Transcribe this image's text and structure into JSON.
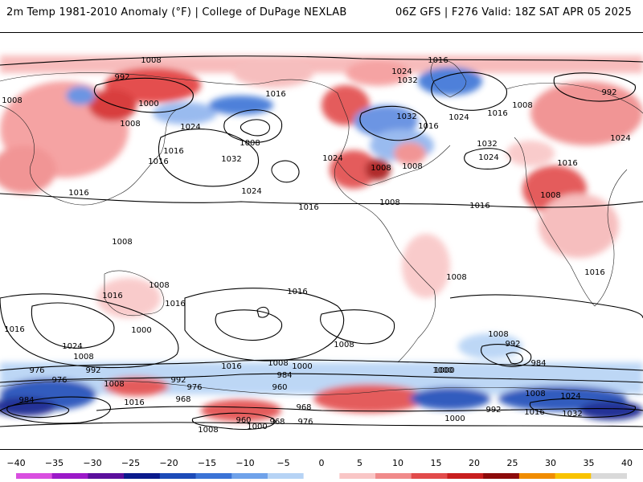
{
  "header": {
    "title_left": "2m Temp 1981-2010 Anomaly (°F) | College of DuPage NEXLAB",
    "title_right": "06Z GFS | F276 Valid: 18Z SAT APR 05 2025"
  },
  "map": {
    "isobar_labels": [
      "1008",
      "1016",
      "992",
      "1024",
      "1032",
      "1008",
      "1000",
      "1008",
      "1016",
      "1016",
      "1016",
      "1024",
      "1032",
      "1016",
      "1024",
      "1032",
      "1024",
      "1008",
      "1008",
      "1016",
      "1016",
      "1024",
      "1008",
      "1032",
      "1024",
      "992",
      "1008",
      "1016",
      "1016",
      "1024",
      "1008",
      "1008",
      "1008",
      "1016",
      "1016",
      "1008",
      "1016",
      "1016",
      "1016",
      "1008",
      "1000",
      "1024",
      "1008",
      "1016",
      "1008",
      "1016",
      "1000",
      "992",
      "984",
      "976",
      "1008",
      "1000",
      "1016",
      "976",
      "992",
      "976",
      "968",
      "1008",
      "984",
      "960",
      "1008",
      "968",
      "992",
      "992",
      "984",
      "1000",
      "1000",
      "1008",
      "1016",
      "1032",
      "960",
      "968",
      "976",
      "1008",
      "1000",
      "1024"
    ],
    "anomaly_colors": {
      "warm": "#e8323c",
      "cold": "#3c6fd8"
    }
  },
  "colorbar": {
    "labels": [
      "−40",
      "−35",
      "−30",
      "−25",
      "−20",
      "−15",
      "−10",
      "−5",
      "0",
      "5",
      "10",
      "15",
      "20",
      "25",
      "30",
      "35",
      "40"
    ],
    "colors": [
      "#d94fe0",
      "#9b19c8",
      "#5b0f9c",
      "#0a1a8c",
      "#1c4bb8",
      "#3b73d6",
      "#6fa2ea",
      "#b6d3f5",
      "#ffffff",
      "#f9c6c6",
      "#f08a8a",
      "#e24b4b",
      "#c81e1e",
      "#8c0a0a",
      "#f08c00",
      "#f9c300",
      "#d9d9d9"
    ]
  }
}
